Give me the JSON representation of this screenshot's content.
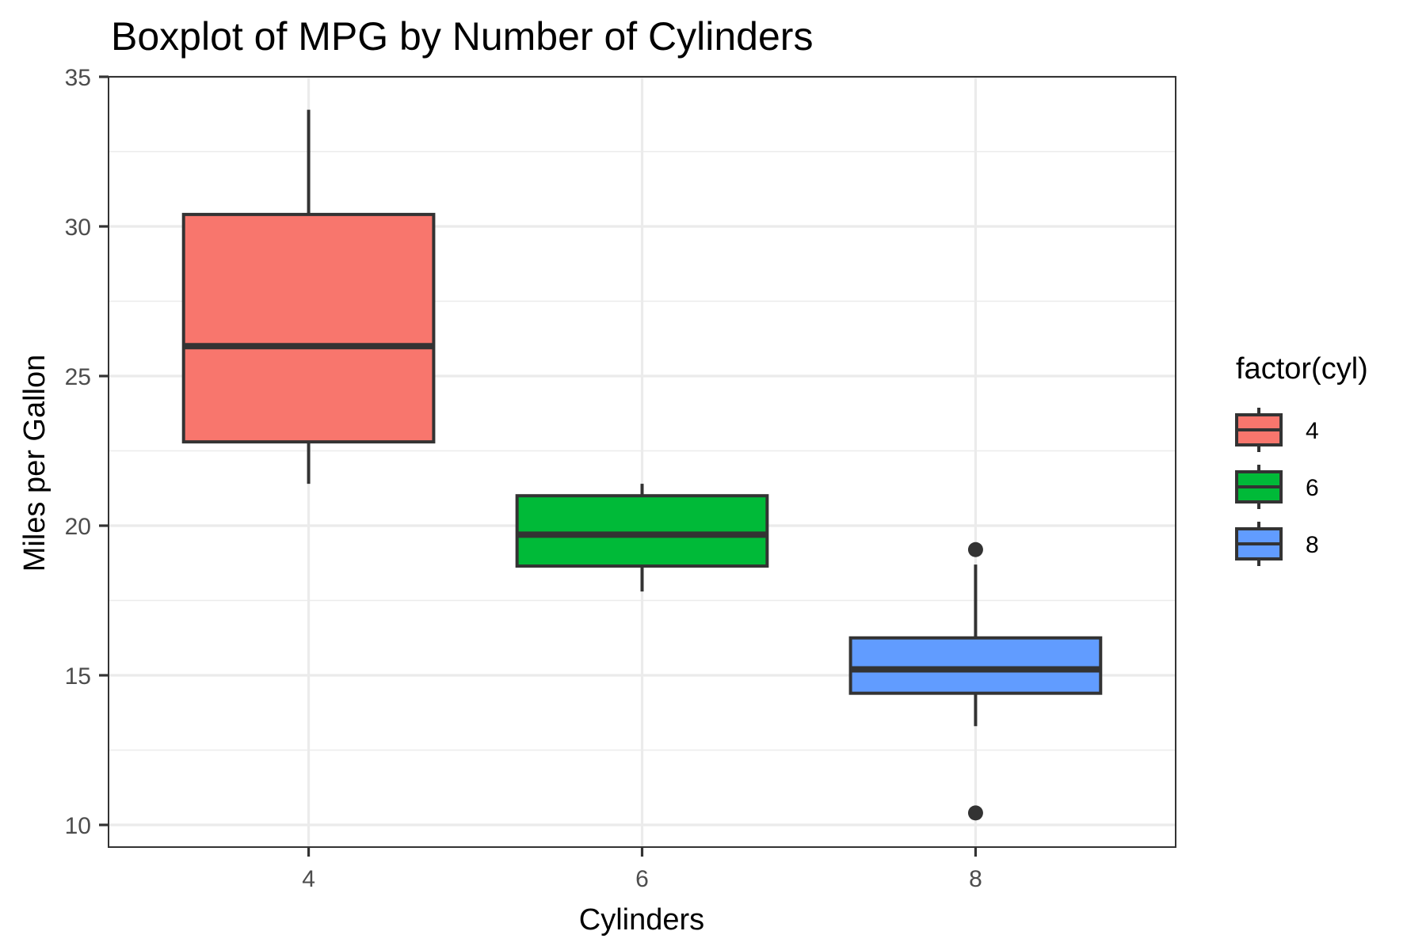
{
  "chart_data": {
    "type": "boxplot",
    "title": "Boxplot of MPG by Number of Cylinders",
    "xlabel": "Cylinders",
    "ylabel": "Miles per Gallon",
    "categories": [
      "4",
      "6",
      "8"
    ],
    "ylim": [
      9.2,
      35
    ],
    "yticks": [
      10,
      15,
      20,
      25,
      30,
      35
    ],
    "grid": true,
    "legend": {
      "title": "factor(cyl)",
      "position": "right",
      "entries": [
        {
          "label": "4",
          "color": "#F8766D"
        },
        {
          "label": "6",
          "color": "#00BA38"
        },
        {
          "label": "8",
          "color": "#619CFF"
        }
      ]
    },
    "series": [
      {
        "name": "4",
        "color": "#F8766D",
        "whisker_low": 21.4,
        "q1": 22.8,
        "median": 26.0,
        "q3": 30.4,
        "whisker_high": 33.9,
        "outliers": []
      },
      {
        "name": "6",
        "color": "#00BA38",
        "whisker_low": 17.8,
        "q1": 18.65,
        "median": 19.7,
        "q3": 21.0,
        "whisker_high": 21.4,
        "outliers": []
      },
      {
        "name": "8",
        "color": "#619CFF",
        "whisker_low": 13.3,
        "q1": 14.4,
        "median": 15.2,
        "q3": 16.25,
        "whisker_high": 18.7,
        "outliers": [
          10.4,
          19.2
        ]
      }
    ]
  }
}
